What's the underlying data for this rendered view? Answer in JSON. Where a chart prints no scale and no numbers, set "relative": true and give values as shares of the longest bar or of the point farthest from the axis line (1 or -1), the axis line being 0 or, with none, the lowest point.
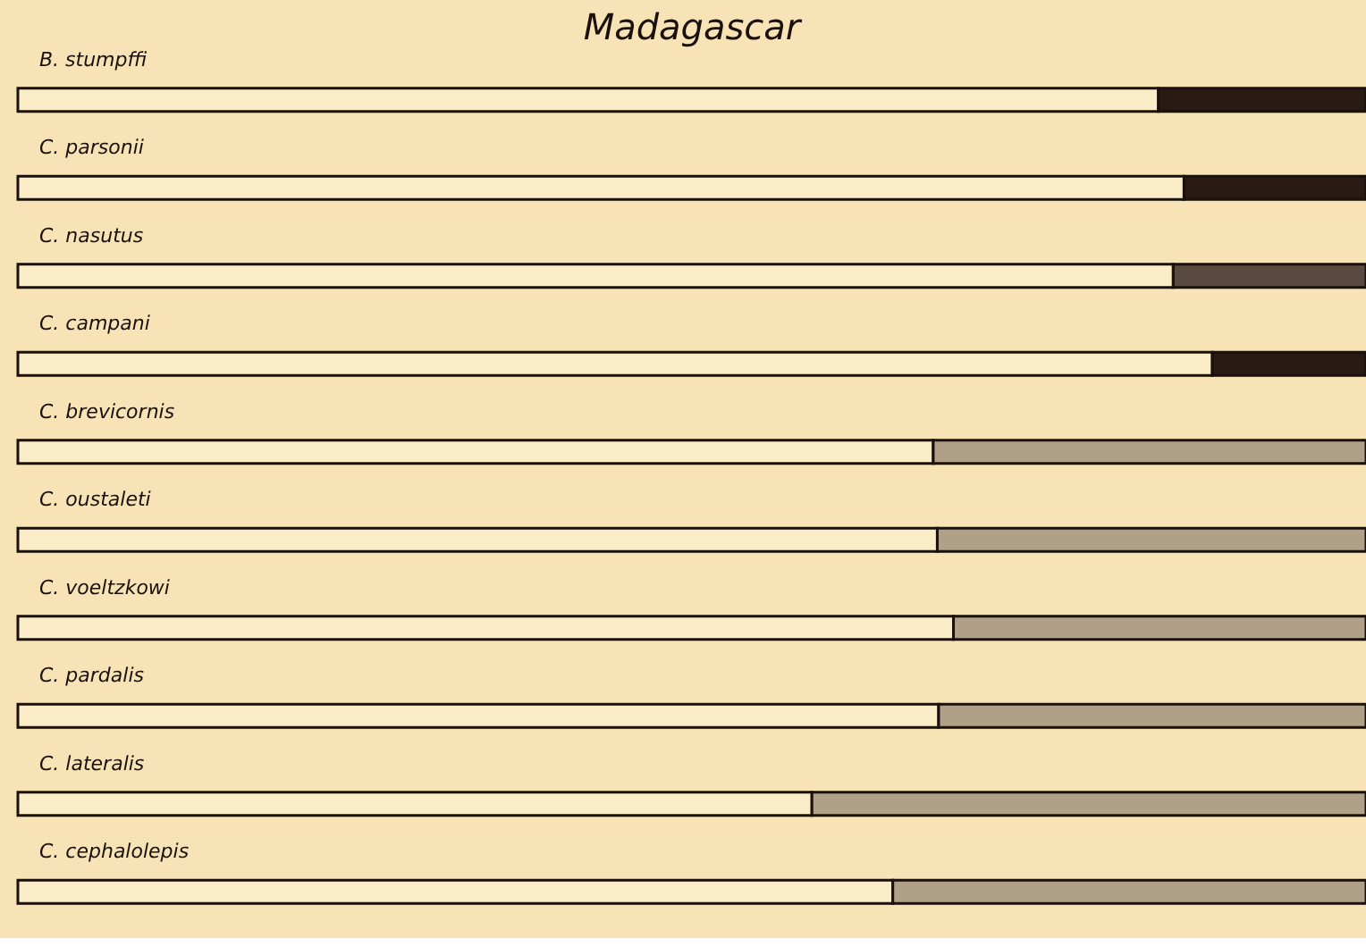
{
  "chart_data": {
    "type": "bar",
    "title": "Madagascar",
    "orientation": "horizontal",
    "stacked": true,
    "relative": true,
    "categories": [
      "B. stumpffi",
      "C. parsonii",
      "C. nasutus",
      "C. campani",
      "C. brevicornis",
      "C. oustaleti",
      "C. voeltzkowi",
      "C. pardalis",
      "C. lateralis",
      "C. cephalolepis"
    ],
    "series": [
      {
        "color": "#fbecc8",
        "values": [
          0.846,
          0.865,
          0.857,
          0.886,
          0.679,
          0.682,
          0.694,
          0.683,
          0.589,
          0.649
        ]
      },
      {
        "colors": [
          "#2a1a14",
          "#2a1a14",
          "#5a4a40",
          "#2a1a14",
          "#b0a088",
          "#b0a088",
          "#b0a088",
          "#b0a088",
          "#b0a088",
          "#b0a088"
        ],
        "values": [
          0.154,
          0.135,
          0.143,
          0.114,
          0.321,
          0.318,
          0.306,
          0.317,
          0.411,
          0.351
        ]
      }
    ],
    "data_labels": false
  }
}
